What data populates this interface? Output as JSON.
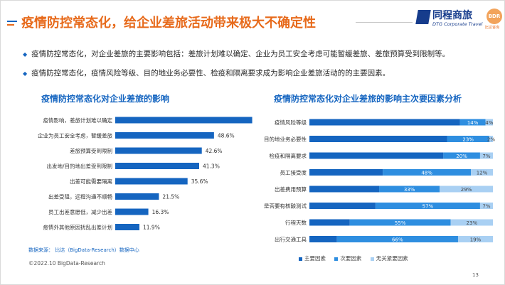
{
  "header": {
    "title": "疫情防控常态化，给企业差旅活动带来极大不确定性",
    "logo_name": "同程商旅",
    "logo_sub": "DTG Corporate Travel",
    "badge": "BDR",
    "badge_sub": "比达咨询"
  },
  "bullets": [
    "疫情防控常态化，对企业差旅的主要影响包括：差旅计划难以确定、企业为员工安全考虑可能暂缓差旅、差旅预算受到限制等。",
    "疫情防控常态化，疫情风险等级、目的地业务必要性、检疫和隔离要求成为影响企业差旅活动的的主要因素。"
  ],
  "footer": {
    "source": "数据来源：  比达（BigData-Research）数据中心",
    "copyright": "©2022.10 BigData-Research",
    "page": "13"
  },
  "colors": {
    "title": "#e76a1b",
    "accent": "#1565c0",
    "primary_factor": "#1565c0",
    "secondary_factor": "#2e8ee0",
    "unrelated_factor": "#a9d0f3"
  },
  "chart_data": [
    {
      "type": "bar",
      "orientation": "horizontal",
      "title": "疫情防控常态化对企业差旅的影响",
      "categories": [
        "疫情影响，差旅计划难以确定",
        "企业为员工安全考虑，暂缓差旅",
        "差旅预算受到限制",
        "出发地/目的地出差受到限制",
        "出差可能需要隔离",
        "出差受阻，远程沟通不顺畅",
        "员工出差意愿低，减少出差",
        "疫情外其他原因扰乱出差计划"
      ],
      "values": [
        67.4,
        48.6,
        42.6,
        41.3,
        35.6,
        21.5,
        16.3,
        11.9
      ],
      "value_labels": [
        "67.4%",
        "48.6%",
        "42.6%",
        "41.3%",
        "35.6%",
        "21.5%",
        "16.3%",
        "11.9%"
      ],
      "xlim": [
        0,
        70
      ]
    },
    {
      "type": "bar",
      "orientation": "horizontal",
      "stacked": true,
      "title": "疫情防控常态化对企业差旅的影响主次要因素分析",
      "categories": [
        "疫情风险等级",
        "目的地业务必要性",
        "检疫和隔离要求",
        "员工接受度",
        "出差费用预算",
        "是否要有核酸测试",
        "行程天数",
        "出行交通工具"
      ],
      "series": [
        {
          "name": "主要因素",
          "values": [
            82,
            75,
            73,
            40,
            38,
            36,
            22,
            15
          ],
          "labels": [
            "",
            "",
            "",
            "",
            "",
            "",
            "",
            ""
          ]
        },
        {
          "name": "次要因素",
          "values": [
            14,
            23,
            20,
            48,
            33,
            57,
            55,
            66
          ],
          "labels": [
            "14%",
            "23%",
            "20%",
            "48%",
            "33%",
            "57%",
            "55%",
            "66%"
          ]
        },
        {
          "name": "无关紧要因素",
          "values": [
            4,
            2,
            7,
            12,
            29,
            7,
            23,
            19
          ],
          "labels": [
            "4%",
            "2%",
            "7%",
            "12%",
            "29%",
            "7%",
            "23%",
            "19%"
          ]
        }
      ],
      "xlim": [
        0,
        100
      ],
      "legend": "bottom"
    }
  ]
}
